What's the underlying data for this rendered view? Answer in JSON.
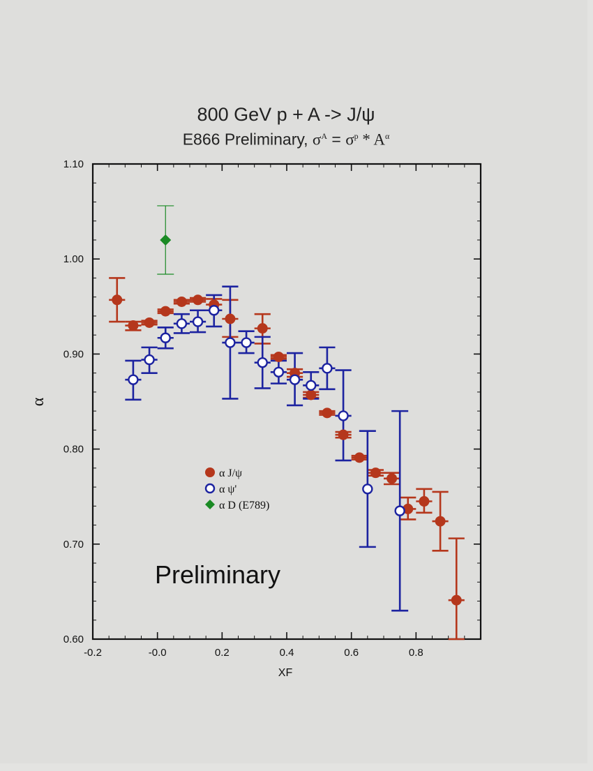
{
  "chart_data": {
    "type": "scatter",
    "title": "800 GeV p + A -> J/ψ",
    "subtitle": {
      "prefix": "E866 Preliminary, ",
      "lhs": "σ",
      "lhs_sup": "A",
      "equals": " = ",
      "rhs": "σ",
      "rhs_sup": "p",
      "times": " * A",
      "times_sup": "α"
    },
    "xlabel": "XF",
    "ylabel": "α",
    "xlim": [
      -0.2,
      1.0
    ],
    "ylim": [
      0.6,
      1.1
    ],
    "xticks": [
      -0.2,
      0.0,
      0.2,
      0.4,
      0.6,
      0.8
    ],
    "xtick_labels": [
      "-0.2",
      "-0.0",
      "0.2",
      "0.4",
      "0.6",
      "0.8"
    ],
    "yticks": [
      0.6,
      0.7,
      0.8,
      0.9,
      1.0,
      1.1
    ],
    "ytick_labels": [
      "0.60",
      "0.70",
      "0.80",
      "0.90",
      "1.00",
      "1.10"
    ],
    "grid": false,
    "legend_position": "center-left",
    "annotation": "Preliminary",
    "series": [
      {
        "name": "α J/ψ",
        "color": "#b5371c",
        "marker": "filled-circle",
        "points": [
          {
            "x": -0.125,
            "y": 0.957,
            "xerr": 0.025,
            "ylo": 0.934,
            "yhi": 0.98
          },
          {
            "x": -0.075,
            "y": 0.93,
            "xerr": 0.025,
            "ylo": 0.925,
            "yhi": 0.934
          },
          {
            "x": -0.025,
            "y": 0.933,
            "xerr": 0.025,
            "ylo": 0.931,
            "yhi": 0.935
          },
          {
            "x": 0.025,
            "y": 0.945,
            "xerr": 0.025,
            "ylo": 0.943,
            "yhi": 0.947
          },
          {
            "x": 0.075,
            "y": 0.955,
            "xerr": 0.025,
            "ylo": 0.953,
            "yhi": 0.957
          },
          {
            "x": 0.125,
            "y": 0.957,
            "xerr": 0.025,
            "ylo": 0.955,
            "yhi": 0.959
          },
          {
            "x": 0.175,
            "y": 0.952,
            "xerr": 0.025,
            "ylo": 0.946,
            "yhi": 0.958
          },
          {
            "x": 0.225,
            "y": 0.937,
            "xerr": 0.025,
            "ylo": 0.918,
            "yhi": 0.957
          },
          {
            "x": 0.325,
            "y": 0.927,
            "xerr": 0.025,
            "ylo": 0.911,
            "yhi": 0.942
          },
          {
            "x": 0.375,
            "y": 0.897,
            "xerr": 0.025,
            "ylo": 0.895,
            "yhi": 0.899
          },
          {
            "x": 0.425,
            "y": 0.88,
            "xerr": 0.025,
            "ylo": 0.876,
            "yhi": 0.884
          },
          {
            "x": 0.475,
            "y": 0.857,
            "xerr": 0.025,
            "ylo": 0.854,
            "yhi": 0.86
          },
          {
            "x": 0.525,
            "y": 0.838,
            "xerr": 0.025,
            "ylo": 0.836,
            "yhi": 0.84
          },
          {
            "x": 0.575,
            "y": 0.815,
            "xerr": 0.025,
            "ylo": 0.812,
            "yhi": 0.818
          },
          {
            "x": 0.625,
            "y": 0.791,
            "xerr": 0.025,
            "ylo": 0.789,
            "yhi": 0.793
          },
          {
            "x": 0.675,
            "y": 0.775,
            "xerr": 0.025,
            "ylo": 0.772,
            "yhi": 0.778
          },
          {
            "x": 0.725,
            "y": 0.769,
            "xerr": 0.025,
            "ylo": 0.763,
            "yhi": 0.775
          },
          {
            "x": 0.775,
            "y": 0.737,
            "xerr": 0.025,
            "ylo": 0.726,
            "yhi": 0.749
          },
          {
            "x": 0.825,
            "y": 0.745,
            "xerr": 0.025,
            "ylo": 0.733,
            "yhi": 0.758
          },
          {
            "x": 0.875,
            "y": 0.724,
            "xerr": 0.025,
            "ylo": 0.693,
            "yhi": 0.755
          },
          {
            "x": 0.925,
            "y": 0.641,
            "xerr": 0.025,
            "ylo": 0.6,
            "yhi": 0.706
          }
        ]
      },
      {
        "name": "α ψ'",
        "color": "#1c23a0",
        "marker": "open-circle",
        "points": [
          {
            "x": -0.075,
            "y": 0.873,
            "xerr": 0.025,
            "ylo": 0.852,
            "yhi": 0.893
          },
          {
            "x": -0.025,
            "y": 0.894,
            "xerr": 0.025,
            "ylo": 0.88,
            "yhi": 0.907
          },
          {
            "x": 0.025,
            "y": 0.917,
            "xerr": 0.025,
            "ylo": 0.906,
            "yhi": 0.928
          },
          {
            "x": 0.075,
            "y": 0.932,
            "xerr": 0.025,
            "ylo": 0.922,
            "yhi": 0.942
          },
          {
            "x": 0.125,
            "y": 0.934,
            "xerr": 0.025,
            "ylo": 0.923,
            "yhi": 0.946
          },
          {
            "x": 0.175,
            "y": 0.946,
            "xerr": 0.025,
            "ylo": 0.929,
            "yhi": 0.962
          },
          {
            "x": 0.225,
            "y": 0.912,
            "xerr": 0.025,
            "ylo": 0.853,
            "yhi": 0.971
          },
          {
            "x": 0.275,
            "y": 0.912,
            "xerr": 0.025,
            "ylo": 0.901,
            "yhi": 0.924
          },
          {
            "x": 0.325,
            "y": 0.891,
            "xerr": 0.025,
            "ylo": 0.864,
            "yhi": 0.918
          },
          {
            "x": 0.375,
            "y": 0.881,
            "xerr": 0.025,
            "ylo": 0.869,
            "yhi": 0.893
          },
          {
            "x": 0.425,
            "y": 0.873,
            "xerr": 0.025,
            "ylo": 0.846,
            "yhi": 0.901
          },
          {
            "x": 0.475,
            "y": 0.867,
            "xerr": 0.025,
            "ylo": 0.853,
            "yhi": 0.881
          },
          {
            "x": 0.525,
            "y": 0.885,
            "xerr": 0.025,
            "ylo": 0.863,
            "yhi": 0.907
          },
          {
            "x": 0.575,
            "y": 0.835,
            "xerr": 0.025,
            "ylo": 0.788,
            "yhi": 0.883
          },
          {
            "x": 0.65,
            "y": 0.758,
            "xerr": 0.0,
            "ylo": 0.697,
            "yhi": 0.819
          },
          {
            "x": 0.75,
            "y": 0.735,
            "xerr": 0.0,
            "ylo": 0.63,
            "yhi": 0.84
          }
        ]
      },
      {
        "name": "α D (E789)",
        "color": "#1a8a24",
        "marker": "filled-diamond",
        "points": [
          {
            "x": 0.025,
            "y": 1.02,
            "xerr": 0.0,
            "ylo": 0.984,
            "yhi": 1.056
          }
        ]
      }
    ]
  }
}
